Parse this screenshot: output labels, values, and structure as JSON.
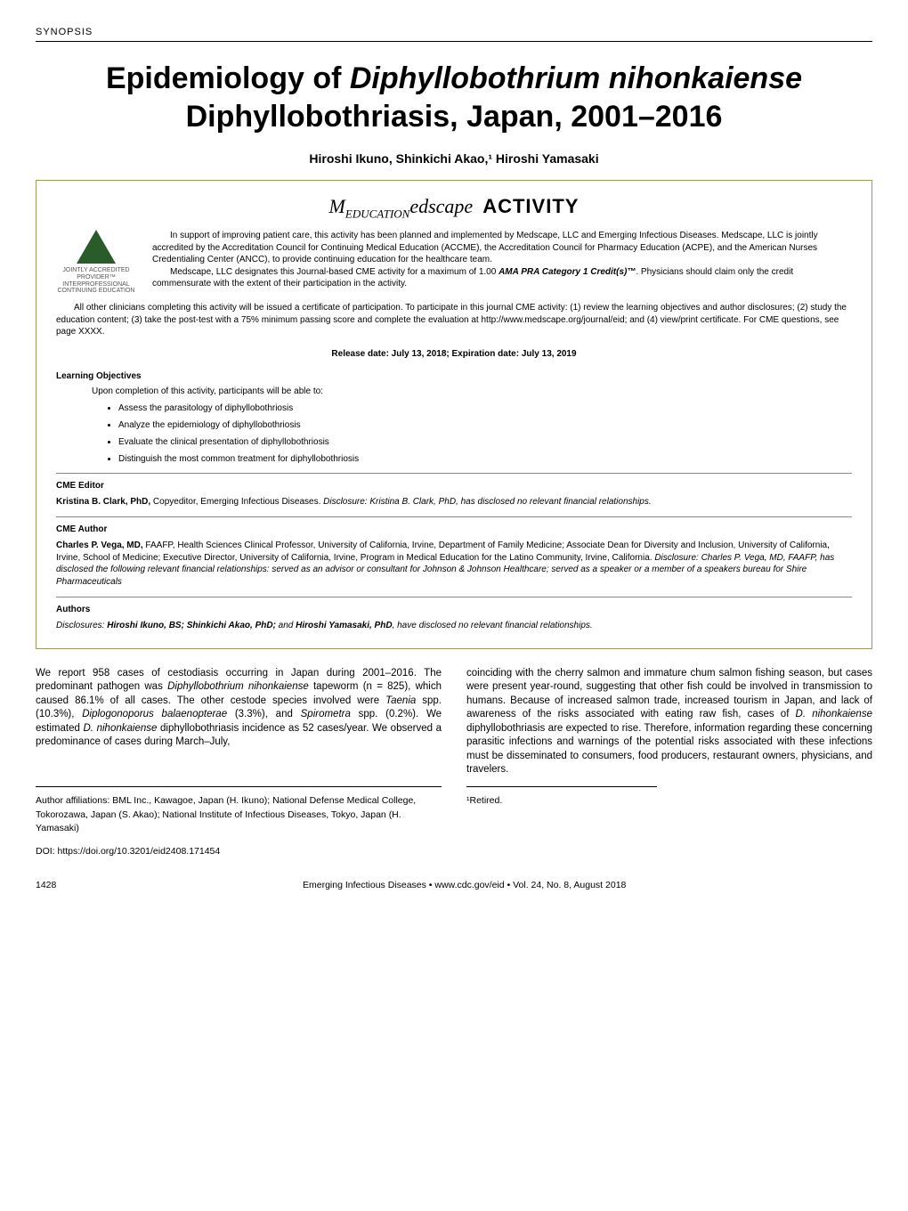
{
  "header": {
    "section": "SYNOPSIS"
  },
  "title": "Epidemiology of Diphyllobothrium nihonkaiense Diphyllobothriasis, Japan, 2001–2016",
  "authors": "Hiroshi Ikuno, Shinkichi Akao,¹ Hiroshi Yamasaki",
  "activity": {
    "logo_prefix": "M",
    "logo_mid": "edscape",
    "logo_word": "ACTIVITY",
    "accred_badge": "JOINTLY ACCREDITED PROVIDER™\nINTERPROFESSIONAL CONTINUING EDUCATION",
    "p1": "In support of improving patient care, this activity has been planned and implemented by Medscape, LLC and Emerging Infectious Diseases. Medscape, LLC is jointly accredited by the Accreditation Council for Continuing Medical Education (ACCME), the Accreditation Council for Pharmacy Education (ACPE), and the American Nurses Credentialing Center (ANCC), to provide continuing education for the healthcare team.",
    "p2a": "Medscape, LLC designates this Journal-based CME activity for a maximum of 1.00 ",
    "p2b": "AMA PRA Category 1 Credit(s)™",
    "p2c": ". Physicians should claim only the credit commensurate with the extent of their participation in the activity.",
    "p3": "All other clinicians completing this activity will be issued a certificate of participation. To participate in this journal CME activity: (1) review the learning objectives and author disclosures; (2) study the education content; (3) take the post-test with a 75% minimum passing score and complete the evaluation at http://www.medscape.org/journal/eid; and (4) view/print certificate. For CME questions, see page XXXX.",
    "release": "Release date: July 13, 2018; Expiration date: July 13, 2019",
    "learning_heading": "Learning Objectives",
    "learning_intro": "Upon completion of this activity, participants will be able to:",
    "learning_items": [
      "Assess the parasitology of diphyllobothriosis",
      "Analyze the epidemiology of diphyllobothriosis",
      "Evaluate the clinical presentation of diphyllobothriosis",
      "Distinguish the most common treatment for diphyllobothriosis"
    ],
    "cme_editor_heading": "CME Editor",
    "cme_editor_name": "Kristina B. Clark, PhD,",
    "cme_editor_role": " Copyeditor, Emerging Infectious Diseases. ",
    "cme_editor_disc_lead": "Disclosure: Kristina B. Clark, PhD, has disclosed no relevant financial relationships.",
    "cme_author_heading": "CME Author",
    "cme_author_name": "Charles P. Vega, MD,",
    "cme_author_body": " FAAFP, Health Sciences Clinical Professor, University of California, Irvine, Department of Family Medicine; Associate Dean for Diversity and Inclusion, University of California, Irvine, School of Medicine; Executive Director, University of California, Irvine, Program in Medical Education for the Latino Community, Irvine, California. ",
    "cme_author_disc": "Disclosure: Charles P. Vega, MD, FAAFP, has disclosed the following relevant financial relationships: served as an advisor or consultant for Johnson & Johnson Healthcare; served as a speaker or a member of a speakers bureau for Shire Pharmaceuticals",
    "authors_heading": "Authors",
    "authors_disc_lead": "Disclosures: ",
    "authors_disc_names": "Hiroshi Ikuno, BS; Shinkichi Akao, PhD;",
    "authors_disc_and": " and ",
    "authors_disc_name2": "Hiroshi Yamasaki, PhD",
    "authors_disc_tail": ", have disclosed no relevant financial relationships."
  },
  "abstract": {
    "col1a": "We report 958 cases of cestodiasis occurring in Japan during 2001–2016. The predominant pathogen was ",
    "col1b": "Diphyllobothrium nihonkaiense",
    "col1c": " tapeworm (n = 825), which caused 86.1% of all cases. The other cestode species involved were ",
    "col1d": "Taenia",
    "col1e": " spp. (10.3%), ",
    "col1f": "Diplogonoporus balaenopterae",
    "col1g": " (3.3%), and ",
    "col1h": "Spirometra",
    "col1i": " spp. (0.2%). We estimated ",
    "col1j": "D. nihonkaiense",
    "col1k": " diphyllobothriasis incidence as 52 cases/year. We observed a predominance of cases during March–July,",
    "col2a": "coinciding with the cherry salmon and immature chum salmon fishing season, but cases were present year-round, suggesting that other fish could be involved in transmission to humans. Because of increased salmon trade, increased tourism in Japan, and lack of awareness of the risks associated with eating raw fish, cases of ",
    "col2b": "D. nihonkaiense",
    "col2c": " diphyllobothriasis are expected to rise. Therefore, information regarding these concerning parasitic infections and warnings of the potential risks associated with these infections must be disseminated to consumers, food producers, restaurant owners, physicians, and travelers."
  },
  "affiliations": "Author affiliations: BML Inc., Kawagoe, Japan (H. Ikuno); National Defense Medical College, Tokorozawa, Japan (S. Akao); National Institute of Infectious Diseases, Tokyo, Japan (H. Yamasaki)",
  "doi": "DOI: https://doi.org/10.3201/eid2408.171454",
  "footnote": "¹Retired.",
  "footer": {
    "page": "1428",
    "citation": "Emerging Infectious Diseases • www.cdc.gov/eid • Vol. 24, No. 8, August 2018"
  },
  "colors": {
    "box_border": "#9a9a5a",
    "triangle": "#2a5b2a"
  }
}
